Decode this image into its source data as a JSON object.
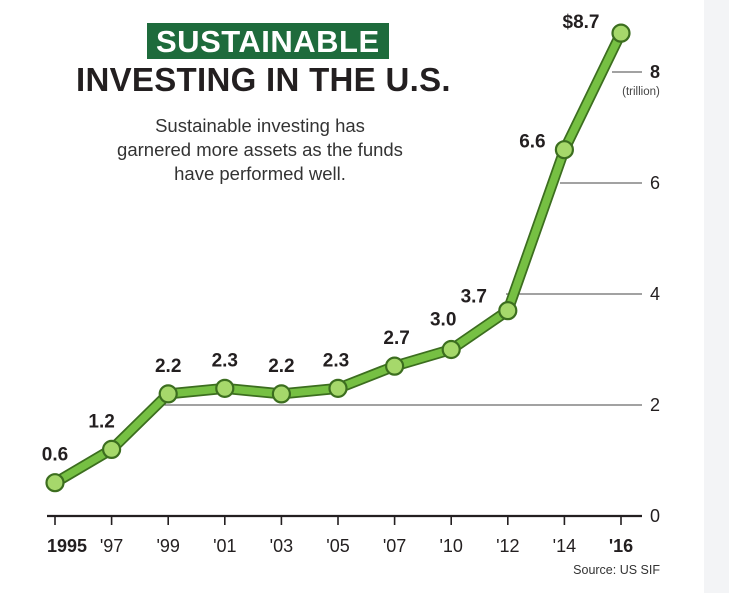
{
  "chart_data": {
    "type": "line",
    "title_badge": "SUSTAINABLE",
    "title": "INVESTING IN THE U.S.",
    "subtitle_lines": [
      "Sustainable investing has",
      "garnered more assets as the funds",
      "have performed well."
    ],
    "x": [
      "1995",
      "'97",
      "'99",
      "'01",
      "'03",
      "'05",
      "'07",
      "'10",
      "'12",
      "'14",
      "'16"
    ],
    "values": [
      0.6,
      1.2,
      2.2,
      2.3,
      2.2,
      2.3,
      2.7,
      3.0,
      3.7,
      6.6,
      8.7
    ],
    "data_labels": [
      "0.6",
      "1.2",
      "2.2",
      "2.3",
      "2.2",
      "2.3",
      "2.7",
      "3.0",
      "3.7",
      "6.6",
      "$8.7"
    ],
    "y_ticks": [
      0,
      2,
      4,
      6,
      8
    ],
    "y_unit": "(trillion)",
    "ylim": [
      0,
      9
    ],
    "grid": true,
    "source": "Source: US SIF",
    "colors": {
      "line": "#76c043",
      "line_outline": "#3c6e1f",
      "badge": "#1e6b3c",
      "text": "#231f20",
      "grid": "#444444"
    }
  }
}
